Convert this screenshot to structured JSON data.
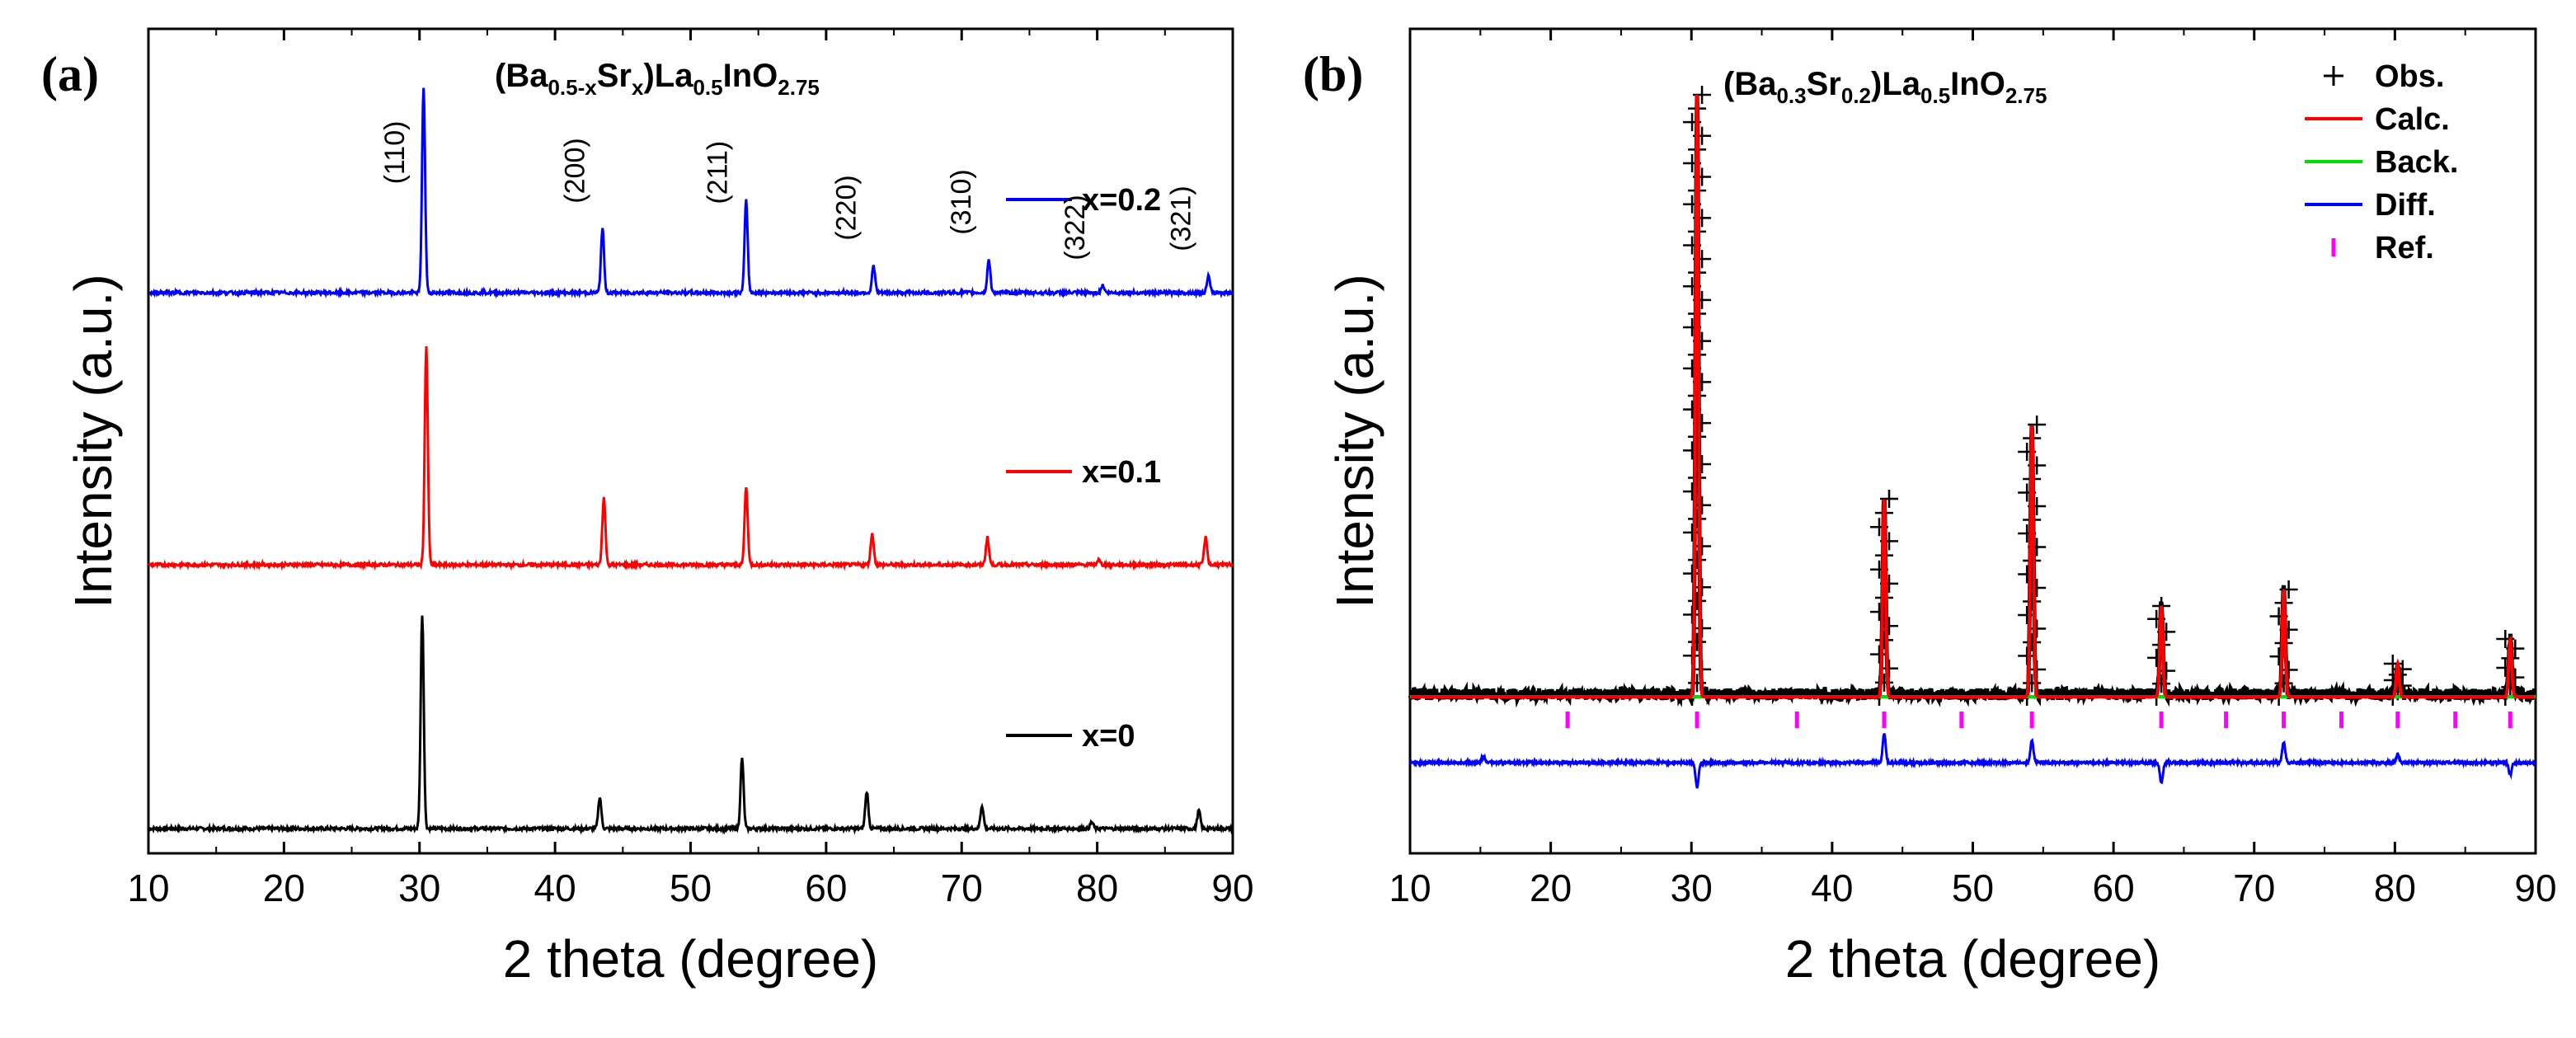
{
  "chart_data": [
    {
      "panel": "(a)",
      "type": "line",
      "title": "(Ba0.5-xSrx)La0.5InO2.75",
      "title_parts": [
        {
          "text": "(Ba",
          "sub": false
        },
        {
          "text": "0.5-x",
          "sub": true
        },
        {
          "text": "Sr",
          "sub": false
        },
        {
          "text": "x",
          "sub": true
        },
        {
          "text": ")La",
          "sub": false
        },
        {
          "text": "0.5",
          "sub": true
        },
        {
          "text": "InO",
          "sub": false
        },
        {
          "text": "2.75",
          "sub": true
        }
      ],
      "xlabel": "2 theta (degree)",
      "ylabel": "Intensity (a.u.)",
      "xlim": [
        10,
        90
      ],
      "ylim": [
        0,
        10
      ],
      "xticks": [
        10,
        20,
        30,
        40,
        50,
        60,
        70,
        80,
        90
      ],
      "grid": false,
      "legend": "right, beside each curve",
      "baseline": 0.3,
      "series": [
        {
          "name": "x=0",
          "color": "#000000",
          "offset": 0.3,
          "peaks": [
            [
              30.2,
              2.6
            ],
            [
              43.3,
              0.38
            ],
            [
              53.8,
              0.85
            ],
            [
              63.0,
              0.45
            ],
            [
              71.5,
              0.28
            ],
            [
              79.6,
              0.08
            ],
            [
              87.5,
              0.22
            ]
          ]
        },
        {
          "name": "x=0.1",
          "color": "#ff0000",
          "offset": 3.5,
          "peaks": [
            [
              30.5,
              2.65
            ],
            [
              43.6,
              0.82
            ],
            [
              54.1,
              0.95
            ],
            [
              63.4,
              0.38
            ],
            [
              71.9,
              0.33
            ],
            [
              80.1,
              0.06
            ],
            [
              88.0,
              0.33
            ]
          ]
        },
        {
          "name": "x=0.2",
          "color": "#0000ff",
          "offset": 6.8,
          "peaks": [
            [
              30.3,
              2.5
            ],
            [
              43.5,
              0.78
            ],
            [
              54.1,
              1.12
            ],
            [
              63.5,
              0.33
            ],
            [
              72.0,
              0.4
            ],
            [
              80.4,
              0.09
            ],
            [
              88.2,
              0.2
            ]
          ]
        }
      ],
      "annotations": [
        {
          "text": "(110)",
          "x": 30.2
        },
        {
          "text": "(200)",
          "x": 43.5
        },
        {
          "text": "(211)",
          "x": 54.0
        },
        {
          "text": "(220)",
          "x": 63.5
        },
        {
          "text": "(310)",
          "x": 72.0
        },
        {
          "text": "(322)",
          "x": 80.4
        },
        {
          "text": "(321)",
          "x": 88.2
        }
      ]
    },
    {
      "panel": "(b)",
      "type": "line",
      "title": "(Ba0.3Sr0.2)La0.5InO2.75",
      "title_parts": [
        {
          "text": "(Ba",
          "sub": false
        },
        {
          "text": "0.3",
          "sub": true
        },
        {
          "text": "Sr",
          "sub": false
        },
        {
          "text": "0.2",
          "sub": true
        },
        {
          "text": ")La",
          "sub": false
        },
        {
          "text": "0.5",
          "sub": true
        },
        {
          "text": "InO",
          "sub": false
        },
        {
          "text": "2.75",
          "sub": true
        }
      ],
      "xlabel": "2 theta (degree)",
      "ylabel": "Intensity (a.u.)",
      "xlim": [
        10,
        90
      ],
      "ylim": [
        0,
        10
      ],
      "xticks": [
        10,
        20,
        30,
        40,
        50,
        60,
        70,
        80,
        90
      ],
      "grid": false,
      "legend": "top-right",
      "background_level": 1.9,
      "difference_level": 1.1,
      "peaks": [
        [
          30.4,
          7.3
        ],
        [
          43.7,
          2.4
        ],
        [
          54.2,
          3.3
        ],
        [
          63.4,
          1.1
        ],
        [
          72.1,
          1.3
        ],
        [
          80.2,
          0.4
        ],
        [
          88.2,
          0.7
        ]
      ],
      "difference_spikes": [
        [
          15.2,
          0.08
        ],
        [
          30.4,
          -0.3
        ],
        [
          43.7,
          0.35
        ],
        [
          54.2,
          0.28
        ],
        [
          63.4,
          -0.25
        ],
        [
          72.1,
          0.25
        ],
        [
          80.2,
          0.1
        ],
        [
          88.2,
          -0.15
        ]
      ],
      "reflections": [
        21.2,
        30.4,
        37.5,
        43.7,
        49.2,
        54.2,
        63.4,
        68.0,
        72.1,
        76.2,
        80.2,
        84.3,
        88.2
      ],
      "series": [
        {
          "name": "Obs.",
          "color": "#000000",
          "marker": "+"
        },
        {
          "name": "Calc.",
          "color": "#ff0000",
          "marker": "line"
        },
        {
          "name": "Back.",
          "color": "#00e000",
          "marker": "line"
        },
        {
          "name": "Diff.",
          "color": "#0000ff",
          "marker": "line"
        },
        {
          "name": "Ref.",
          "color": "#ff00ff",
          "marker": "tick"
        }
      ]
    }
  ]
}
